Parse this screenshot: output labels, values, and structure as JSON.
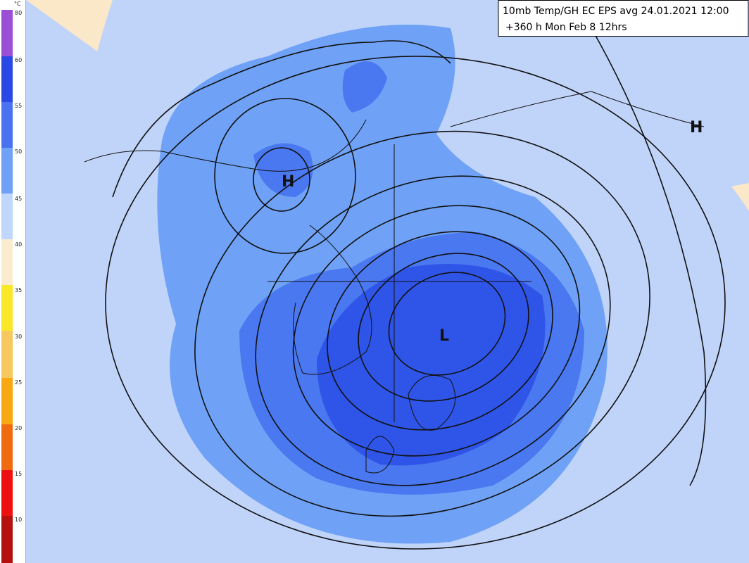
{
  "legend": {
    "unit": "°C",
    "labels": [
      "80",
      "60",
      "55",
      "50",
      "45",
      "40",
      "35",
      "30",
      "25",
      "20",
      "15",
      "10"
    ]
  },
  "title": {
    "line1": "10mb Temp/GH EC EPS avg 24.01.2021 12:00",
    "line2": "+360 h Mon Feb 8 12hrs"
  },
  "map": {
    "labels": [
      "H",
      "H",
      "L"
    ]
  }
}
